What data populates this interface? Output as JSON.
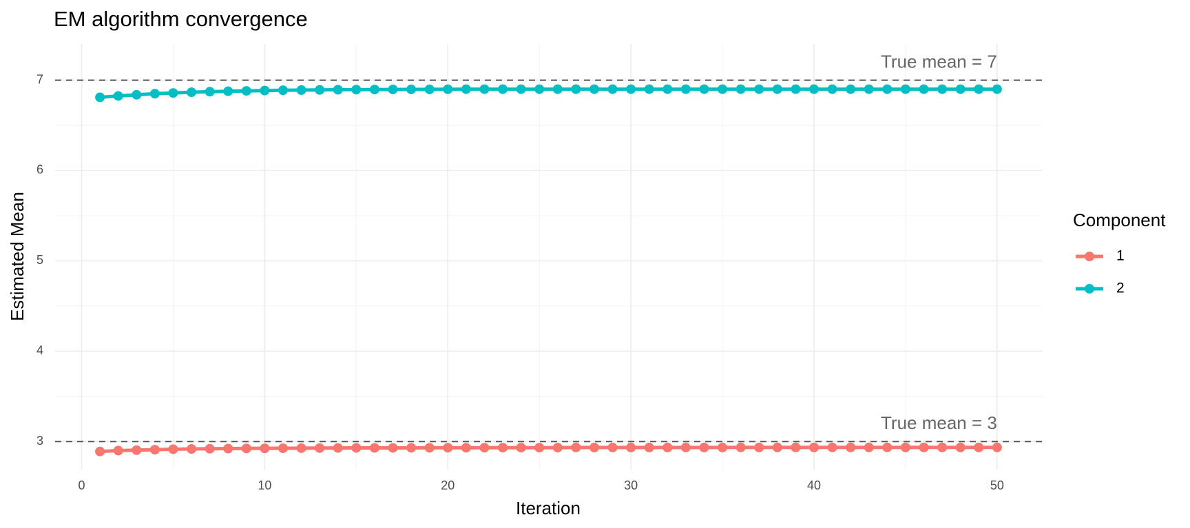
{
  "chart_data": {
    "type": "line",
    "title": "EM algorithm convergence",
    "x_label": "Iteration",
    "y_label": "Estimated Mean",
    "legend_title": "Component",
    "x": [
      1,
      2,
      3,
      4,
      5,
      6,
      7,
      8,
      9,
      10,
      11,
      12,
      13,
      14,
      15,
      16,
      17,
      18,
      19,
      20,
      21,
      22,
      23,
      24,
      25,
      26,
      27,
      28,
      29,
      30,
      31,
      32,
      33,
      34,
      35,
      36,
      37,
      38,
      39,
      40,
      41,
      42,
      43,
      44,
      45,
      46,
      47,
      48,
      49,
      50
    ],
    "series": [
      {
        "name": "1",
        "color": "#F8766D",
        "values": [
          2.89,
          2.9,
          2.905,
          2.91,
          2.915,
          2.918,
          2.92,
          2.922,
          2.924,
          2.925,
          2.926,
          2.927,
          2.928,
          2.929,
          2.93,
          2.93,
          2.93,
          2.931,
          2.931,
          2.932,
          2.932,
          2.932,
          2.933,
          2.933,
          2.933,
          2.933,
          2.934,
          2.934,
          2.934,
          2.934,
          2.934,
          2.934,
          2.934,
          2.934,
          2.934,
          2.935,
          2.935,
          2.935,
          2.935,
          2.935,
          2.935,
          2.935,
          2.935,
          2.935,
          2.935,
          2.935,
          2.935,
          2.935,
          2.935,
          2.935
        ]
      },
      {
        "name": "2",
        "color": "#00BFC4",
        "values": [
          6.81,
          6.825,
          6.838,
          6.85,
          6.858,
          6.866,
          6.872,
          6.877,
          6.881,
          6.885,
          6.888,
          6.89,
          6.892,
          6.894,
          6.895,
          6.896,
          6.897,
          6.898,
          6.898,
          6.899,
          6.9,
          6.9,
          6.9,
          6.9,
          6.9,
          6.9,
          6.9,
          6.9,
          6.9,
          6.9,
          6.9,
          6.9,
          6.9,
          6.9,
          6.9,
          6.9,
          6.9,
          6.9,
          6.9,
          6.9,
          6.9,
          6.9,
          6.9,
          6.9,
          6.9,
          6.9,
          6.9,
          6.9,
          6.9,
          6.9
        ]
      }
    ],
    "reference_lines": [
      {
        "value": 7,
        "label": "True mean = 7"
      },
      {
        "value": 3,
        "label": "True mean = 3"
      }
    ],
    "xlim": [
      -1.45,
      52.45
    ],
    "xticks": [
      0,
      10,
      20,
      30,
      40,
      50
    ],
    "ylim": [
      2.69,
      7.4
    ],
    "yticks": [
      3,
      4,
      5,
      6,
      7
    ],
    "grid": true
  }
}
